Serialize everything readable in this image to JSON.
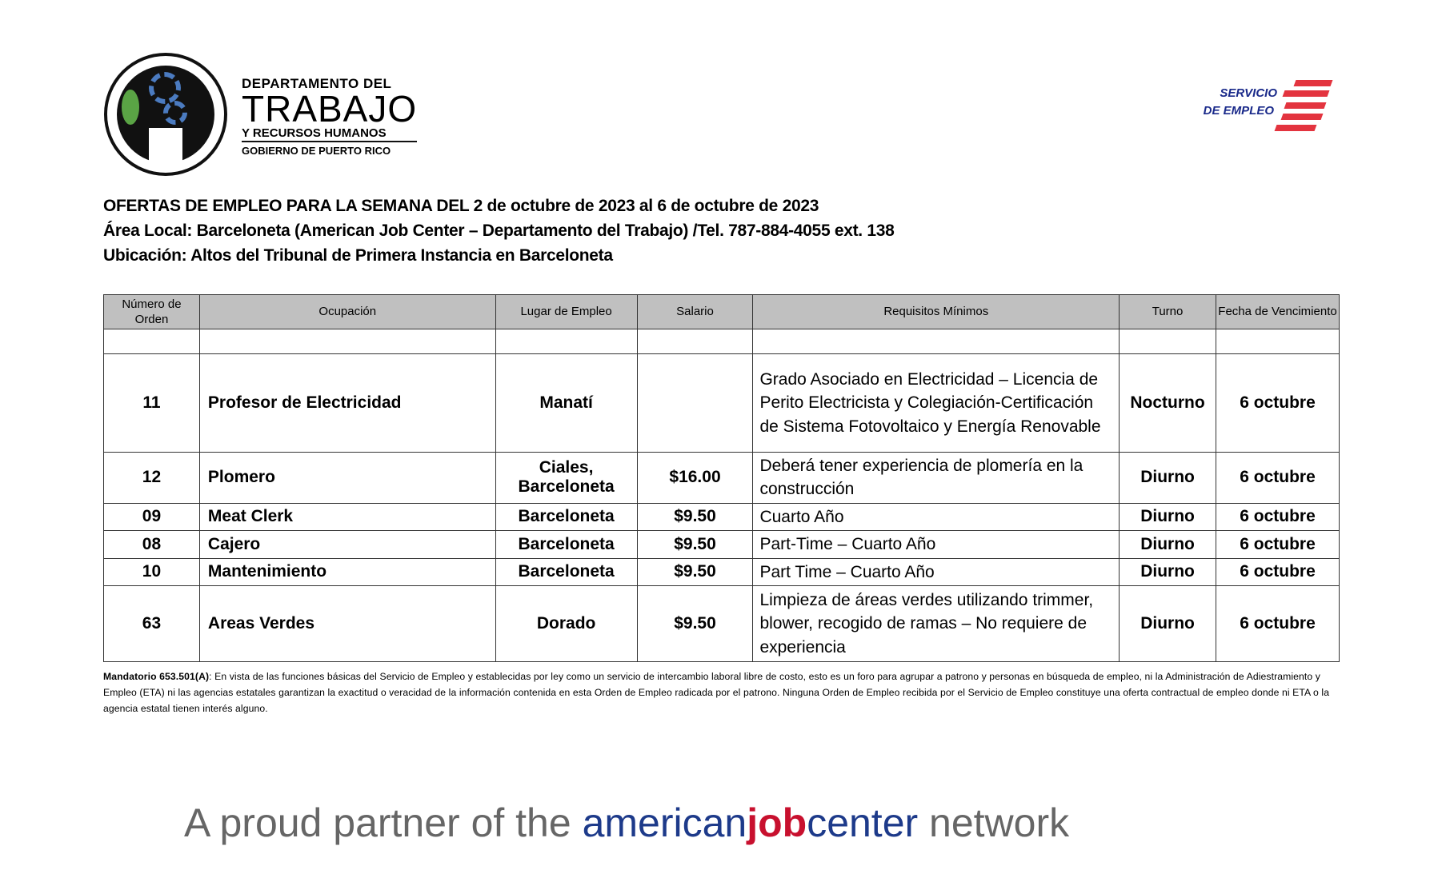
{
  "header": {
    "dept_logo": {
      "line1": "DEPARTAMENTO DEL",
      "line2": "TRABAJO",
      "line3": "Y RECURSOS HUMANOS",
      "line4": "GOBIERNO DE PUERTO RICO",
      "seal_text": "DIGNIDAD Y JUSTICIA POR EL TRABAJO"
    },
    "servicio_logo": {
      "line1": "SERVICIO",
      "line2": "DE EMPLEO",
      "colors": {
        "text": "#1a2a8a",
        "stripes": "#e3343f"
      }
    },
    "title": "OFERTAS DE EMPLEO PARA LA SEMANA DEL  2 de octubre de 2023 al 6 de octubre de 2023",
    "area": "Área Local:  Barceloneta (American Job Center – Departamento del Trabajo) /Tel.  787-884-4055 ext. 138",
    "location": "Ubicación: Altos del Tribunal de Primera Instancia en Barceloneta"
  },
  "table": {
    "columns": [
      "Número de Orden",
      "Ocupación",
      "Lugar de Empleo",
      "Salario",
      "Requisitos Mínimos",
      "Turno",
      "Fecha de Vencimiento"
    ],
    "rows": [
      {
        "orden": "11",
        "ocupacion": "Profesor de Electricidad",
        "lugar": "Manatí",
        "salario": "",
        "requisitos": "Grado Asociado en Electricidad – Licencia de Perito Electricista y Colegiación-Certificación de Sistema Fotovoltaico y Energía Renovable",
        "turno": "Nocturno",
        "fecha": "6 octubre"
      },
      {
        "orden": "12",
        "ocupacion": "Plomero",
        "lugar": "Ciales, Barceloneta",
        "salario": "$16.00",
        "requisitos": "Deberá tener experiencia de plomería en la construcción",
        "turno": "Diurno",
        "fecha": "6 octubre"
      },
      {
        "orden": "09",
        "ocupacion": "Meat Clerk",
        "lugar": "Barceloneta",
        "salario": "$9.50",
        "requisitos": "Cuarto Año",
        "turno": "Diurno",
        "fecha": "6 octubre"
      },
      {
        "orden": "08",
        "ocupacion": "Cajero",
        "lugar": "Barceloneta",
        "salario": "$9.50",
        "requisitos": "Part-Time – Cuarto Año",
        "turno": "Diurno",
        "fecha": "6 octubre"
      },
      {
        "orden": "10",
        "ocupacion": "Mantenimiento",
        "lugar": "Barceloneta",
        "salario": "$9.50",
        "requisitos": "Part Time – Cuarto Año",
        "turno": "Diurno",
        "fecha": "6 octubre"
      },
      {
        "orden": "63",
        "ocupacion": "Areas Verdes",
        "lugar": "Dorado",
        "salario": "$9.50",
        "requisitos": "Limpieza de áreas verdes utilizando trimmer, blower, recogido de ramas – No requiere de experiencia",
        "turno": "Diurno",
        "fecha": "6 octubre"
      }
    ]
  },
  "disclaimer": {
    "lead": "Mandatorio 653.501(A)",
    "text": ": En vista de las funciones básicas del Servicio de Empleo y establecidas por ley como un servicio de intercambio laboral libre de costo, esto es un foro para agrupar a patrono y personas en búsqueda de empleo, ni la Administración de Adiestramiento y Empleo (ETA) ni las agencias estatales garantizan la exactitud o veracidad de la información contenida en esta Orden de Empleo radicada por el patrono.  Ninguna Orden de Empleo recibida por el Servicio de Empleo constituye una oferta contractual de empleo donde ni ETA o la agencia estatal tienen interés alguno."
  },
  "footer": {
    "prefix": "A proud partner of the ",
    "american": "american",
    "job": "job",
    "center": "center",
    "suffix": " network"
  }
}
